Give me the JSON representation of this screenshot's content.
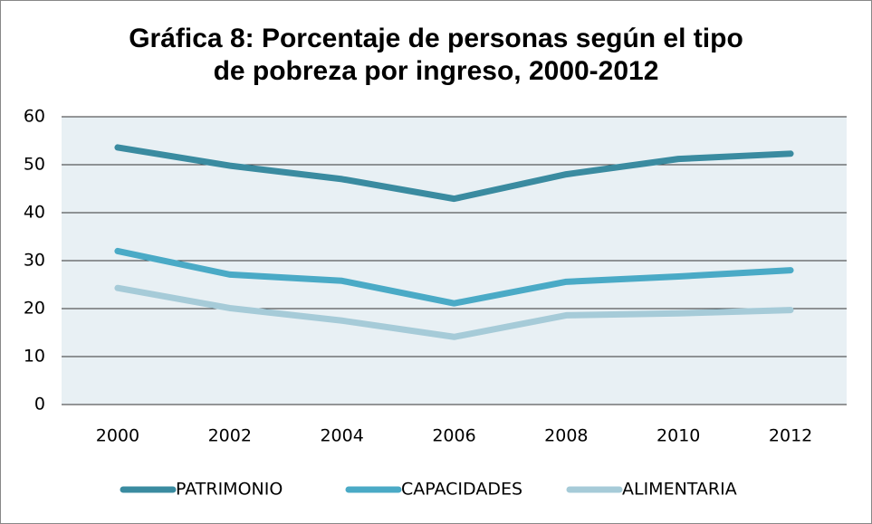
{
  "chart_data": {
    "type": "line",
    "title": "Gráfica 8: Porcentaje de personas según el tipo de pobreza por ingreso, 2000-2012",
    "categories": [
      "2000",
      "2002",
      "2004",
      "2006",
      "2008",
      "2010",
      "2012"
    ],
    "series": [
      {
        "name": "PATRIMONIO",
        "color": "#3a8ba0",
        "values": [
          53.6,
          49.8,
          47.0,
          42.9,
          48.0,
          51.2,
          52.3
        ]
      },
      {
        "name": "CAPACIDADES",
        "color": "#4aaac6",
        "values": [
          32.0,
          27.1,
          25.8,
          21.1,
          25.6,
          26.7,
          28.0
        ]
      },
      {
        "name": "ALIMENTARIA",
        "color": "#a6cbd8",
        "values": [
          24.3,
          20.1,
          17.5,
          14.1,
          18.6,
          19.0,
          19.7
        ]
      }
    ],
    "ylim": [
      0,
      60
    ],
    "yticks": [
      0,
      10,
      20,
      30,
      40,
      50,
      60
    ],
    "grid": true,
    "legend": "bottom",
    "plot_background": "#e8f0f4"
  }
}
